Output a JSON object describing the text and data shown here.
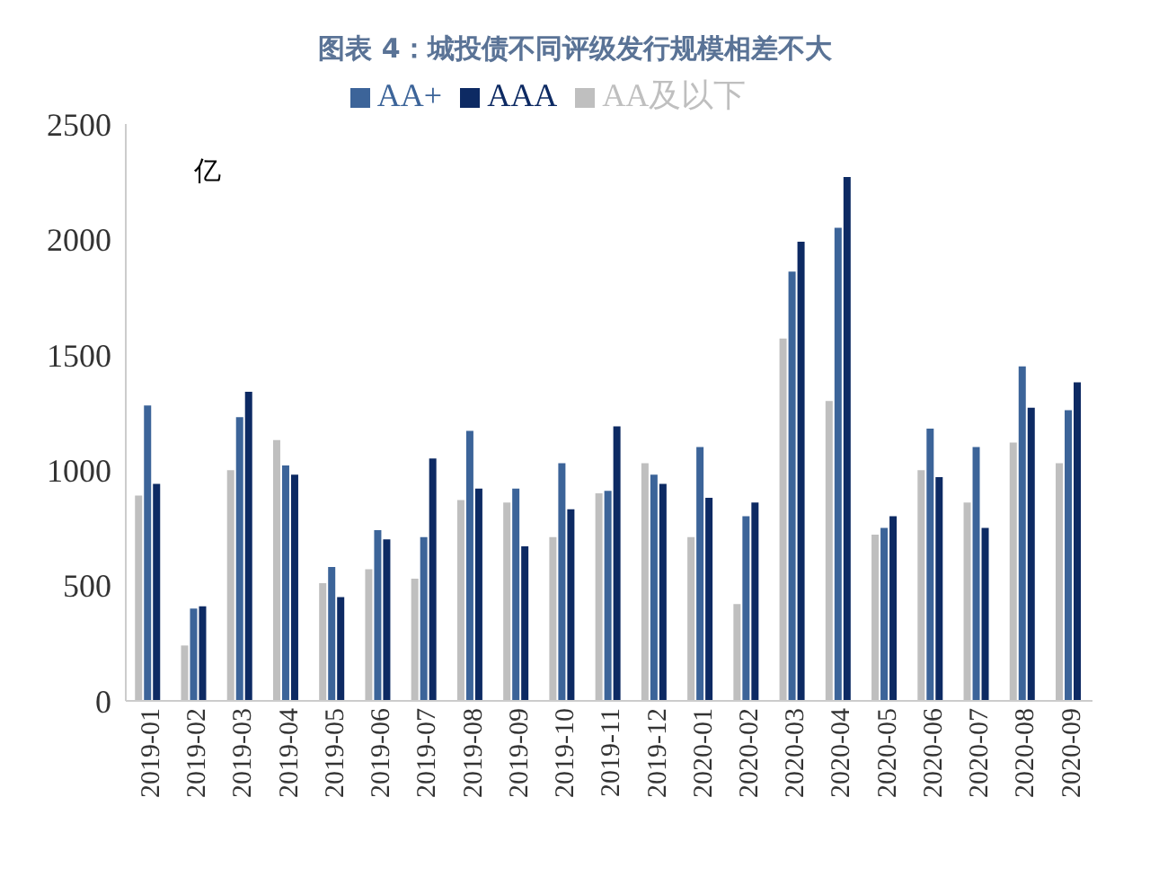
{
  "chart_data": {
    "type": "bar",
    "title": "图表 4：城投债不同评级发行规模相差不大",
    "ylabel": "亿",
    "categories": [
      "2019-01",
      "2019-02",
      "2019-03",
      "2019-04",
      "2019-05",
      "2019-06",
      "2019-07",
      "2019-08",
      "2019-09",
      "2019-10",
      "2019-11",
      "2019-12",
      "2020-01",
      "2020-02",
      "2020-03",
      "2020-04",
      "2020-05",
      "2020-06",
      "2020-07",
      "2020-08",
      "2020-09"
    ],
    "series": [
      {
        "name": "AA及以下",
        "color": "#bfbfbf",
        "values": [
          890,
          240,
          1000,
          1130,
          510,
          570,
          530,
          870,
          860,
          710,
          900,
          1030,
          710,
          420,
          1570,
          1300,
          720,
          1000,
          860,
          1120,
          1030
        ]
      },
      {
        "name": "AA+",
        "color": "#3c6499",
        "values": [
          1280,
          400,
          1230,
          1020,
          580,
          740,
          710,
          1170,
          920,
          1030,
          910,
          980,
          1100,
          800,
          1860,
          2050,
          750,
          1180,
          1100,
          1450,
          1260
        ]
      },
      {
        "name": "AAA",
        "color": "#0d2a63",
        "values": [
          940,
          410,
          1340,
          980,
          450,
          700,
          1050,
          920,
          670,
          830,
          1190,
          940,
          880,
          860,
          1990,
          2270,
          800,
          970,
          750,
          1270,
          1380
        ]
      }
    ],
    "ylim": [
      0,
      2500
    ],
    "yticks": [
      0,
      500,
      1000,
      1500,
      2000,
      2500
    ],
    "grid": false,
    "legend": "top"
  }
}
